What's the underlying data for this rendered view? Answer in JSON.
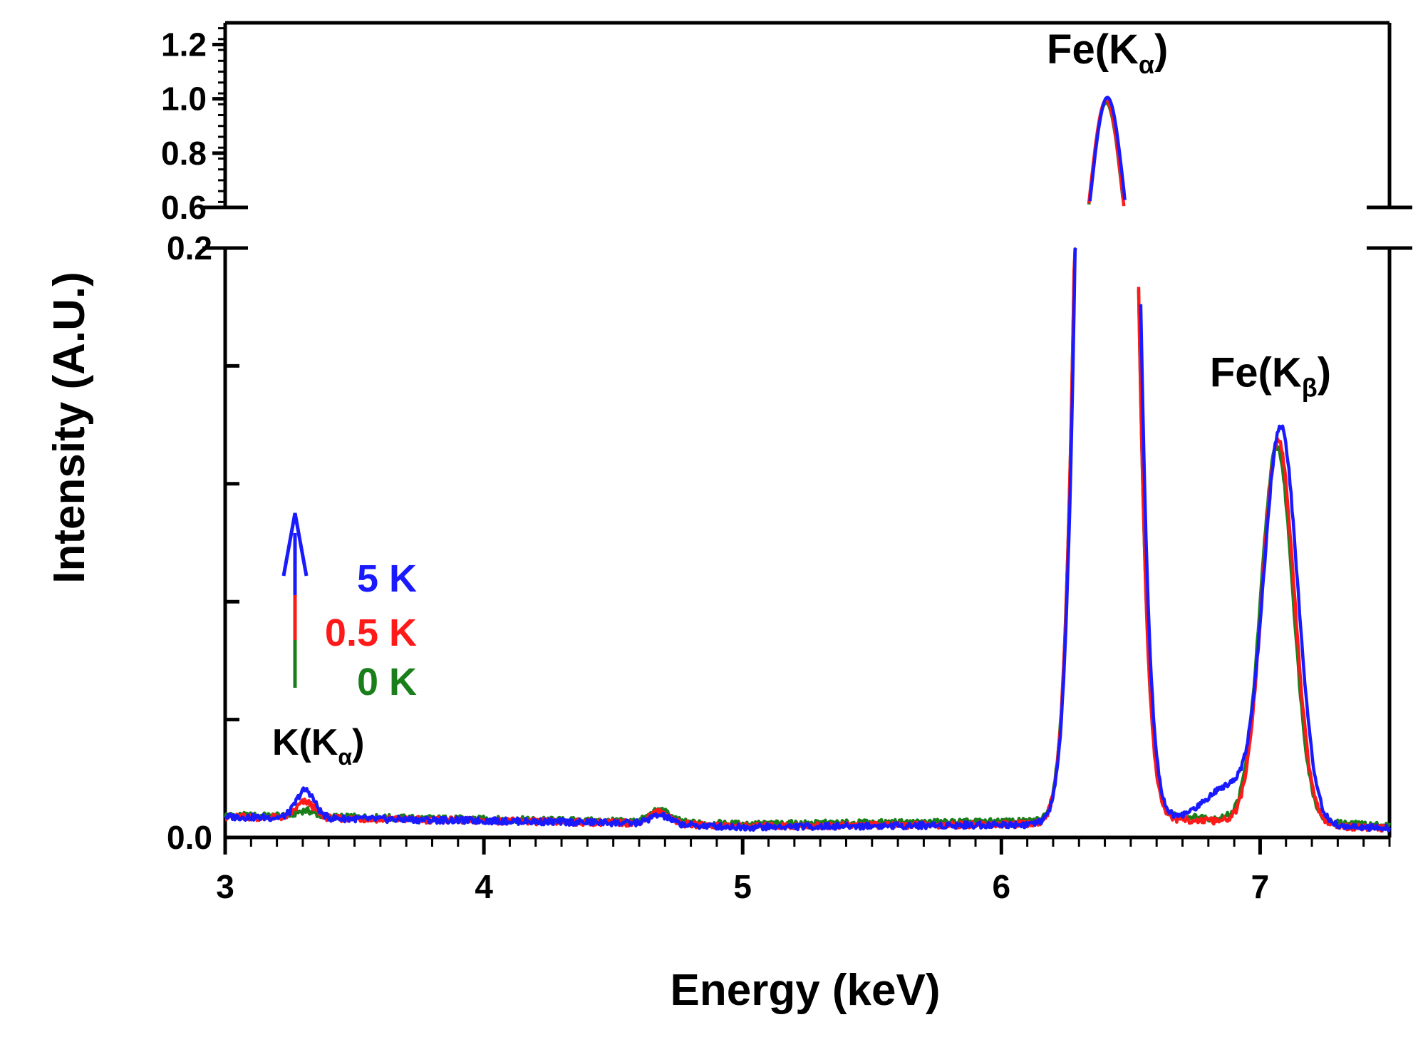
{
  "chart_data": {
    "type": "line",
    "xlabel": "Energy (keV)",
    "ylabel": "Intensity (A.U.)",
    "xlim": [
      3,
      7.5
    ],
    "xticks": [
      3,
      4,
      5,
      6,
      7
    ],
    "x_tick_labels": [
      "3",
      "4",
      "5",
      "6",
      "7"
    ],
    "y_axis_break": {
      "lower_range": [
        0,
        0.2
      ],
      "upper_range": [
        0.6,
        1.28
      ]
    },
    "y_tick_labels_lower": [
      "0.0",
      "0.2"
    ],
    "y_tick_labels_upper": [
      "0.6",
      "0.8",
      "1.0",
      "1.2"
    ],
    "legend_direction": "increasing",
    "series": [
      {
        "name": "0 K",
        "color": "#1a7f1a",
        "peaks": [
          {
            "center": 3.31,
            "width": 0.035,
            "height": 0.002
          },
          {
            "center": 4.68,
            "width": 0.04,
            "height": 0.004
          },
          {
            "center": 6.405,
            "width": 0.068,
            "height": 0.98
          },
          {
            "center": 7.065,
            "width": 0.062,
            "height": 0.127
          }
        ],
        "baseline": [
          [
            3.0,
            0.0075
          ],
          [
            4.5,
            0.0055
          ],
          [
            5.0,
            0.0045
          ],
          [
            6.2,
            0.0055
          ],
          [
            6.7,
            0.007
          ],
          [
            7.5,
            0.004
          ]
        ]
      },
      {
        "name": "0.5 K",
        "color": "#ff1a1a",
        "peaks": [
          {
            "center": 3.31,
            "width": 0.035,
            "height": 0.0055
          },
          {
            "center": 4.68,
            "width": 0.04,
            "height": 0.004
          },
          {
            "center": 6.405,
            "width": 0.068,
            "height": 0.99
          },
          {
            "center": 7.07,
            "width": 0.062,
            "height": 0.13
          }
        ],
        "baseline": [
          [
            3.0,
            0.007
          ],
          [
            4.5,
            0.005
          ],
          [
            5.0,
            0.0038
          ],
          [
            6.2,
            0.0045
          ],
          [
            6.7,
            0.006
          ],
          [
            7.5,
            0.003
          ]
        ]
      },
      {
        "name": "5 K",
        "color": "#1a1aff",
        "peaks": [
          {
            "center": 3.31,
            "width": 0.035,
            "height": 0.0095
          },
          {
            "center": 4.68,
            "width": 0.04,
            "height": 0.003
          },
          {
            "center": 6.41,
            "width": 0.069,
            "height": 1.0
          },
          {
            "center": 7.08,
            "width": 0.065,
            "height": 0.134
          },
          {
            "center": 6.88,
            "width": 0.09,
            "height": 0.012
          }
        ],
        "baseline": [
          [
            3.0,
            0.007
          ],
          [
            4.5,
            0.005
          ],
          [
            5.0,
            0.0035
          ],
          [
            6.2,
            0.0045
          ],
          [
            6.7,
            0.006
          ],
          [
            7.5,
            0.003
          ]
        ]
      }
    ],
    "annotations": [
      {
        "key": "k_ka",
        "base": "K(K",
        "sub": "α",
        "close": ")",
        "x": 3.36,
        "y": 0.028
      },
      {
        "key": "fe_ka",
        "base": "Fe(K",
        "sub": "α",
        "close": ")",
        "x": 6.41,
        "y": 1.13
      },
      {
        "key": "fe_kb",
        "base": "Fe(K",
        "sub": "β",
        "close": ")",
        "x": 7.04,
        "y": 0.153
      }
    ],
    "legend": [
      {
        "label": "5 K",
        "color": "#1a1aff"
      },
      {
        "label": "0.5 K",
        "color": "#ff1a1a"
      },
      {
        "label": "0 K",
        "color": "#1a7f1a"
      }
    ]
  }
}
